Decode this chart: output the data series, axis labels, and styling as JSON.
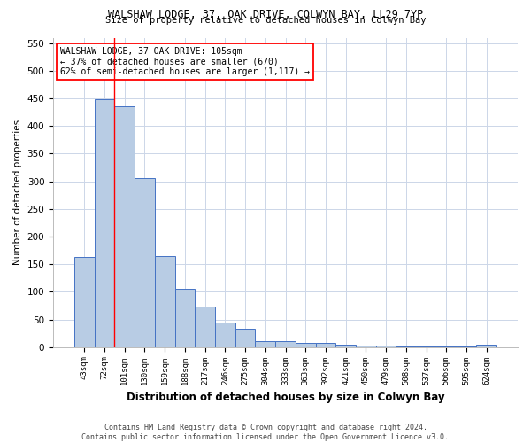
{
  "title1": "WALSHAW LODGE, 37, OAK DRIVE, COLWYN BAY, LL29 7YP",
  "title2": "Size of property relative to detached houses in Colwyn Bay",
  "xlabel": "Distribution of detached houses by size in Colwyn Bay",
  "ylabel": "Number of detached properties",
  "footer1": "Contains HM Land Registry data © Crown copyright and database right 2024.",
  "footer2": "Contains public sector information licensed under the Open Government Licence v3.0.",
  "categories": [
    "43sqm",
    "72sqm",
    "101sqm",
    "130sqm",
    "159sqm",
    "188sqm",
    "217sqm",
    "246sqm",
    "275sqm",
    "304sqm",
    "333sqm",
    "363sqm",
    "392sqm",
    "421sqm",
    "450sqm",
    "479sqm",
    "508sqm",
    "537sqm",
    "566sqm",
    "595sqm",
    "624sqm"
  ],
  "values": [
    163,
    449,
    435,
    306,
    165,
    106,
    73,
    44,
    33,
    10,
    10,
    7,
    7,
    4,
    2,
    2,
    1,
    1,
    1,
    1,
    4
  ],
  "bar_color": "#b8cce4",
  "bar_edge_color": "#4472c4",
  "red_line_x": 1.5,
  "annotation_text": "WALSHAW LODGE, 37 OAK DRIVE: 105sqm\n← 37% of detached houses are smaller (670)\n62% of semi-detached houses are larger (1,117) →",
  "ylim": [
    0,
    560
  ],
  "yticks": [
    0,
    50,
    100,
    150,
    200,
    250,
    300,
    350,
    400,
    450,
    500,
    550
  ],
  "grid_color": "#ccd6e8",
  "background_color": "white",
  "fig_width": 6.0,
  "fig_height": 5.0,
  "dpi": 100
}
